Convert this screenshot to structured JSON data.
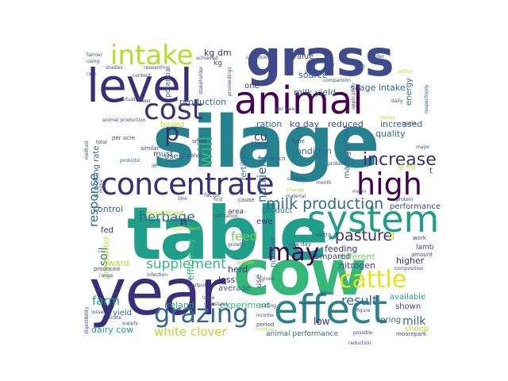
{
  "palette": {
    "dark_purple": "#440154",
    "indigo": "#3b2e78",
    "slate_blue": "#3f4a8a",
    "steel_blue": "#31688e",
    "teal": "#26828e",
    "sea_green": "#1f9e89",
    "green": "#35b779",
    "lime": "#6ece58",
    "yellow_green": "#b5de2b",
    "yellow": "#e4e419"
  },
  "words": [
    {
      "text": "grass",
      "color": "#3f4a8a"
    },
    {
      "text": "silage",
      "color": "#26828e"
    },
    {
      "text": "table",
      "color": "#1f9e89"
    },
    {
      "text": "cow",
      "color": "#35b779"
    },
    {
      "text": "level",
      "color": "#3b2e78"
    },
    {
      "text": "animal",
      "color": "#440154"
    },
    {
      "text": "year",
      "color": "#3b2e78"
    },
    {
      "text": "system",
      "color": "#1f9e89"
    },
    {
      "text": "effect",
      "color": "#26828e"
    },
    {
      "text": "intake",
      "color": "#b5de2b"
    },
    {
      "text": "cost",
      "color": "#3b2e78"
    },
    {
      "text": "concentrate",
      "color": "#3b2e78"
    },
    {
      "text": "high",
      "color": "#440154"
    },
    {
      "text": "grazing",
      "color": "#31688e"
    },
    {
      "text": "cattle",
      "color": "#e4e419"
    },
    {
      "text": "may",
      "color": "#440154"
    },
    {
      "text": "milk production",
      "color": "#31688e"
    },
    {
      "text": "pasture",
      "color": "#3b2e78"
    },
    {
      "text": "increase",
      "color": "#3b2e78"
    },
    {
      "text": "will",
      "color": "#35b779"
    },
    {
      "text": "p",
      "color": "#3b2e78"
    },
    {
      "text": "herbage",
      "color": "#31688e"
    },
    {
      "text": "supplement",
      "color": "#35b779"
    },
    {
      "text": "potential",
      "color": "#31688e"
    },
    {
      "text": "response",
      "color": "#31688e"
    },
    {
      "text": "feed",
      "color": "#6ece58"
    },
    {
      "text": "result",
      "color": "#31688e"
    },
    {
      "text": "farm",
      "color": "#1f9e89"
    },
    {
      "text": "white clover",
      "color": "#b5de2b"
    },
    {
      "text": "milk",
      "color": "#31688e"
    },
    {
      "text": "kg dm",
      "color": "#3b2e78"
    },
    {
      "text": "kg",
      "color": "#3f4a8a"
    },
    {
      "text": "nutrient",
      "color": "#31688e"
    },
    {
      "text": "production",
      "color": "#31688e"
    },
    {
      "text": "ration",
      "color": "#31688e"
    },
    {
      "text": "kg day",
      "color": "#3f4a8a"
    },
    {
      "text": "reduced",
      "color": "#3f4a8a"
    },
    {
      "text": "increased",
      "color": "#31688e"
    },
    {
      "text": "quality",
      "color": "#31688e"
    },
    {
      "text": "silage intake",
      "color": "#31688e"
    },
    {
      "text": "milk yield",
      "color": "#31688e"
    },
    {
      "text": "value",
      "color": "#3f4a8a"
    },
    {
      "text": "source",
      "color": "#31688e"
    },
    {
      "text": "energy",
      "color": "#31688e"
    },
    {
      "text": "one",
      "color": "#3b2e78"
    },
    {
      "text": "soil",
      "color": "#31688e"
    },
    {
      "text": "control",
      "color": "#31688e"
    },
    {
      "text": "important",
      "color": "#b5de2b"
    },
    {
      "text": "fed",
      "color": "#3b2e78"
    },
    {
      "text": "dry matter",
      "color": "#b5de2b"
    },
    {
      "text": "efficiency",
      "color": "#35b779"
    },
    {
      "text": "fertiliser",
      "color": "#31688e"
    },
    {
      "text": "product",
      "color": "#31688e"
    },
    {
      "text": "condition",
      "color": "#31688e"
    },
    {
      "text": "management",
      "color": "#31688e"
    },
    {
      "text": "performance",
      "color": "#3f4a8a"
    },
    {
      "text": "feeding",
      "color": "#3b2e78"
    },
    {
      "text": "different",
      "color": "#6ece58"
    },
    {
      "text": "nitrogen",
      "color": "#3f4a8a"
    },
    {
      "text": "compared",
      "color": "#3f4a8a"
    },
    {
      "text": "higher",
      "color": "#3b2e78"
    },
    {
      "text": "available",
      "color": "#1f9e89"
    },
    {
      "text": "shown",
      "color": "#3f4a8a"
    },
    {
      "text": "sward",
      "color": "#b5de2b"
    },
    {
      "text": "herd",
      "color": "#3b2e78"
    },
    {
      "text": "less",
      "color": "#3b2e78"
    },
    {
      "text": "average",
      "color": "#31688e"
    },
    {
      "text": "experiment",
      "color": "#35b779"
    },
    {
      "text": "ireland",
      "color": "#1f9e89"
    },
    {
      "text": "yield",
      "color": "#31688e"
    },
    {
      "text": "dairy cow",
      "color": "#1f9e89"
    },
    {
      "text": "used",
      "color": "#31688e"
    },
    {
      "text": "must",
      "color": "#3f4a8a"
    },
    {
      "text": "based",
      "color": "#b5de2b"
    },
    {
      "text": "stocking rate",
      "color": "#31688e"
    },
    {
      "text": "low",
      "color": "#3b2e78"
    },
    {
      "text": "sheep",
      "color": "#b5de2b"
    },
    {
      "text": "lamb",
      "color": "#3f4a8a"
    },
    {
      "text": "spring",
      "color": "#31688e"
    },
    {
      "text": "animal performance",
      "color": "#31688e"
    },
    {
      "text": "time",
      "color": "#3f4a8a"
    },
    {
      "text": "use",
      "color": "#3f4a8a"
    },
    {
      "text": "number",
      "color": "#31688e"
    },
    {
      "text": "ewe",
      "color": "#3b2e78"
    },
    {
      "text": "n",
      "color": "#3b2e78"
    },
    {
      "text": "d",
      "color": "#b5de2b"
    },
    {
      "text": "cu",
      "color": "#3b2e78"
    },
    {
      "text": "per acre",
      "color": "#3f4a8a"
    },
    {
      "text": "small",
      "color": "#3f4a8a"
    },
    {
      "text": "calve",
      "color": "#3f4a8a"
    },
    {
      "text": "similar",
      "color": "#3f4a8a"
    },
    {
      "text": "probiotic",
      "color": "#31688e"
    },
    {
      "text": "ie",
      "color": "#3f4a8a"
    },
    {
      "text": "g kg",
      "color": "#b5de2b"
    },
    {
      "text": "type",
      "color": "#3f4a8a"
    },
    {
      "text": "much",
      "color": "#3f4a8a"
    },
    {
      "text": "mean",
      "color": "#3f4a8a"
    },
    {
      "text": "problem",
      "color": "#3f4a8a"
    },
    {
      "text": "month",
      "color": "#3f4a8a"
    },
    {
      "text": "scheme",
      "color": "#3f4a8a"
    },
    {
      "text": "change",
      "color": "#b5de2b"
    },
    {
      "text": "material",
      "color": "#3f4a8a"
    },
    {
      "text": "factor",
      "color": "#3f4a8a"
    },
    {
      "text": "cause",
      "color": "#3f4a8a"
    },
    {
      "text": "litre",
      "color": "#3f4a8a"
    },
    {
      "text": "first",
      "color": "#3f4a8a"
    },
    {
      "text": "utilization",
      "color": "#3f4a8a"
    },
    {
      "text": "requirement",
      "color": "#b5de2b"
    },
    {
      "text": "growth",
      "color": "#3f4a8a"
    },
    {
      "text": "cow day",
      "color": "#3f4a8a"
    },
    {
      "text": "area",
      "color": "#3b2e78"
    },
    {
      "text": "extra",
      "color": "#3f4a8a"
    },
    {
      "text": "work",
      "color": "#3f4a8a"
    },
    {
      "text": "amount",
      "color": "#3f4a8a"
    },
    {
      "text": "composition",
      "color": "#3f4a8a"
    },
    {
      "text": "protein",
      "color": "#3f4a8a"
    },
    {
      "text": "major",
      "color": "#3f4a8a"
    },
    {
      "text": "daily",
      "color": "#3f4a8a"
    },
    {
      "text": "barley",
      "color": "#b5de2b"
    },
    {
      "text": "order",
      "color": "#3f4a8a"
    },
    {
      "text": "form",
      "color": "#3f4a8a"
    },
    {
      "text": "land",
      "color": "#3f4a8a"
    },
    {
      "text": "case",
      "color": "#3f4a8a"
    },
    {
      "text": "due",
      "color": "#3f4a8a"
    },
    {
      "text": "within",
      "color": "#b5de2b"
    },
    {
      "text": "application",
      "color": "#3f4a8a"
    },
    {
      "text": "comparison",
      "color": "#3f4a8a"
    },
    {
      "text": "produce",
      "color": "#3f4a8a"
    },
    {
      "text": "quota",
      "color": "#3f4a8a"
    },
    {
      "text": "respectively",
      "color": "#3f4a8a"
    },
    {
      "text": "proceedings",
      "color": "#3f4a8a"
    },
    {
      "text": "achieved",
      "color": "#3f4a8a"
    },
    {
      "text": "stakeholder",
      "color": "#3f4a8a"
    },
    {
      "text": "situation",
      "color": "#3f4a8a"
    },
    {
      "text": "content",
      "color": "#3f4a8a"
    },
    {
      "text": "research",
      "color": "#3f4a8a"
    },
    {
      "text": "studies",
      "color": "#3f4a8a"
    },
    {
      "text": "farmer",
      "color": "#3f4a8a"
    },
    {
      "text": "using",
      "color": "#3f4a8a"
    },
    {
      "text": "rate",
      "color": "#3f4a8a"
    },
    {
      "text": "method",
      "color": "#3f4a8a"
    },
    {
      "text": "total",
      "color": "#3f4a8a"
    },
    {
      "text": "many",
      "color": "#3f4a8a"
    },
    {
      "text": "animal production",
      "color": "#3f4a8a"
    },
    {
      "text": "lower",
      "color": "#3f4a8a"
    },
    {
      "text": "cutting",
      "color": "#3f4a8a"
    },
    {
      "text": "produced",
      "color": "#3f4a8a"
    },
    {
      "text": "range",
      "color": "#3f4a8a"
    },
    {
      "text": "infection",
      "color": "#3f4a8a"
    },
    {
      "text": "found",
      "color": "#3f4a8a"
    },
    {
      "text": "indicate",
      "color": "#3f4a8a"
    },
    {
      "text": "losses",
      "color": "#3f4a8a"
    },
    {
      "text": "supply",
      "color": "#3f4a8a"
    },
    {
      "text": "digestibility",
      "color": "#3f4a8a"
    },
    {
      "text": "plant",
      "color": "#3f4a8a"
    },
    {
      "text": "output",
      "color": "#3f4a8a"
    },
    {
      "text": "large",
      "color": "#3f4a8a"
    },
    {
      "text": "grassland",
      "color": "#3f4a8a"
    },
    {
      "text": "income",
      "color": "#3f4a8a"
    },
    {
      "text": "mineral",
      "color": "#b5de2b"
    },
    {
      "text": "period",
      "color": "#3f4a8a"
    },
    {
      "text": "present",
      "color": "#3f4a8a"
    },
    {
      "text": "figure",
      "color": "#3f4a8a"
    },
    {
      "text": "reduction",
      "color": "#3f4a8a"
    },
    {
      "text": "possible",
      "color": "#3f4a8a"
    },
    {
      "text": "moorepark",
      "color": "#3f4a8a"
    },
    {
      "text": "group",
      "color": "#3f4a8a"
    },
    {
      "text": "winter",
      "color": "#b5de2b"
    },
    {
      "text": "given",
      "color": "#3f4a8a"
    },
    {
      "text": "per ewe",
      "color": "#3f4a8a"
    },
    {
      "text": "t",
      "color": "#3b2e78"
    }
  ]
}
